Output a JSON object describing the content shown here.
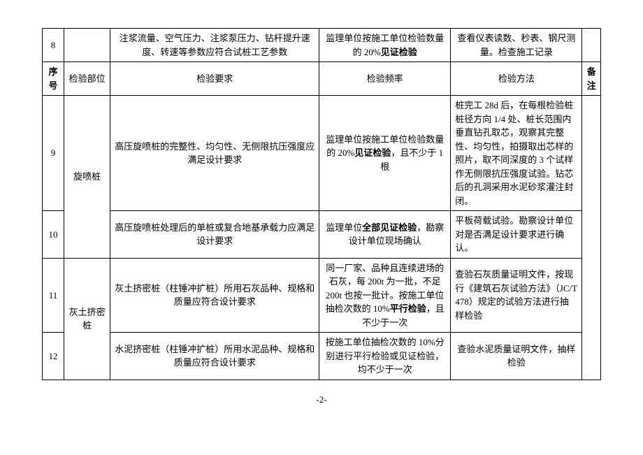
{
  "header": {
    "seq": "序号",
    "part": "检验部位",
    "req": "检验要求",
    "freq": "检验频率",
    "method": "检验方法",
    "note": "备注"
  },
  "rows": {
    "r8": {
      "seq": "8",
      "req": "注浆流量、空气压力、注浆泵压力、钻杆提升速度、转速等参数应符合试桩工艺参数",
      "freq_pre": "监理单位按施工单位检验数量的 20%",
      "freq_bold": "见证检验",
      "method": "查看仪表读数、秒表、钢尺测量。检查施工记录"
    },
    "r9": {
      "seq": "9",
      "part": "旋喷桩",
      "req": "高压旋喷桩的完整性、均匀性、无侧限抗压强度应满足设计要求",
      "freq_pre": "监理单位按施工单位检验数量的 20%",
      "freq_bold": "见证检验",
      "freq_post": "，且不少于 1 根",
      "method": "桩完工 28d 后，在每根检验桩桩径方向 1/4 处、桩长范围内垂直钻孔取芯，观察其完整性、均匀性，拍摄取出芯样的照片，取不同深度的 3 个试样作无侧限抗压强度试验。钻芯后的孔洞采用水泥砂浆灌注封闭。"
    },
    "r10": {
      "seq": "10",
      "req": "高压旋喷桩处理后的单桩或复合地基承载力应满足设计要求",
      "freq_pre": "监理单位",
      "freq_bold": "全部见证检验",
      "freq_post": "，勘察设计单位现场确认",
      "method": "平板荷载试验。勘察设计单位对是否满足设计要求进行确认。"
    },
    "r11": {
      "seq": "11",
      "part": "灰土挤密桩",
      "req": "灰土挤密桩（柱锤冲扩桩）所用石灰品种、规格和质量应符合设计要求",
      "freq_pre": "同一厂家、品种且连续进场的石灰，每 200t 为一批，不足 200t 也按一批计。按施工单位抽检次数的 10%",
      "freq_bold": "平行检验",
      "freq_post": "，且不少于一次",
      "method": "查验石灰质量证明文件，按现行《建筑石灰试验方法》（JC/T 478）规定的试验方法进行抽样检验"
    },
    "r12": {
      "seq": "12",
      "req": "水泥挤密桩（柱锤冲扩桩）所用水泥品种、规格和质量应符合设计要求",
      "freq": "按施工单位抽检次数的 10%分别进行平行检验或见证检验，均不少于一次",
      "method": "查验水泥质量证明文件，抽样检验"
    }
  },
  "page": "-2-"
}
